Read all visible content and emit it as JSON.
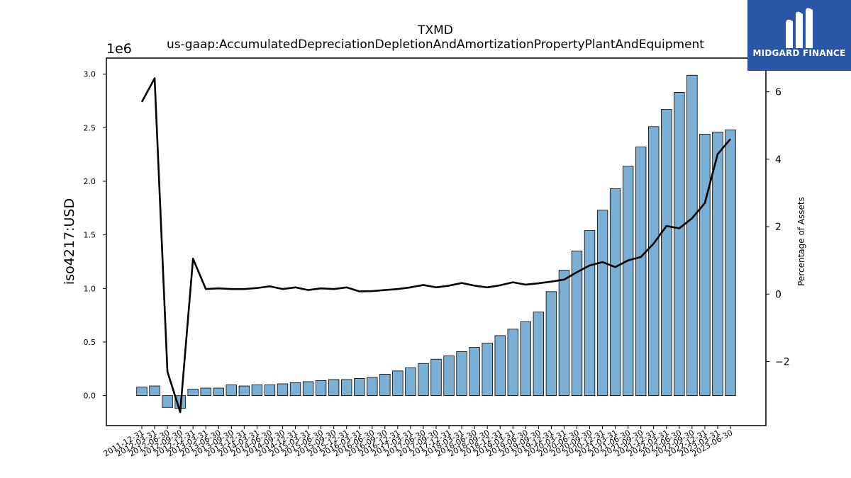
{
  "logo": {
    "text": "MIDGARD FINANCE",
    "icon": "midgard-m-logo-icon",
    "color": "#2a56a8"
  },
  "chart_data": {
    "type": "bar+line",
    "title": "TXMD",
    "subtitle": "us-gaap:AccumulatedDepreciationDepletionAndAmortizationPropertyPlantAndEquipment",
    "ylabel": "iso4217:USD",
    "y2label": "Percentage of Assets",
    "y_offset_label": "1e6",
    "ylim": [
      -0.28,
      3.15
    ],
    "y2lim": [
      -3.9,
      7.0
    ],
    "yticks": [
      "0.0",
      "0.5",
      "1.0",
      "1.5",
      "2.0",
      "2.5",
      "3.0"
    ],
    "y2ticks": [
      "−2",
      "0",
      "2",
      "4",
      "6"
    ],
    "bar_color": "#7bafd4",
    "line_color": "#000000",
    "categories": [
      "2011-12-31",
      "2012-03-31",
      "2012-06-30",
      "2012-09-30",
      "2012-12-31",
      "2013-03-31",
      "2013-06-30",
      "2013-09-30",
      "2013-12-31",
      "2014-03-31",
      "2014-06-30",
      "2014-09-30",
      "2014-12-31",
      "2015-03-31",
      "2015-06-30",
      "2015-09-30",
      "2015-12-31",
      "2016-03-31",
      "2016-06-30",
      "2016-09-30",
      "2016-12-31",
      "2017-03-31",
      "2017-06-30",
      "2017-09-30",
      "2017-12-31",
      "2018-03-31",
      "2018-06-30",
      "2018-09-30",
      "2018-12-31",
      "2019-03-31",
      "2019-06-30",
      "2019-09-30",
      "2019-12-31",
      "2020-03-31",
      "2020-06-30",
      "2020-09-30",
      "2020-12-31",
      "2021-03-31",
      "2021-06-30",
      "2021-09-30",
      "2021-12-31",
      "2022-03-31",
      "2022-06-30",
      "2022-09-30",
      "2022-12-31",
      "2023-03-31",
      "2023-06-30"
    ],
    "series": [
      {
        "type": "bar",
        "axis": "left",
        "values": [
          0.08,
          0.09,
          -0.11,
          -0.12,
          0.06,
          0.07,
          0.07,
          0.1,
          0.09,
          0.1,
          0.1,
          0.11,
          0.12,
          0.13,
          0.14,
          0.15,
          0.15,
          0.16,
          0.17,
          0.2,
          0.23,
          0.26,
          0.3,
          0.34,
          0.37,
          0.41,
          0.45,
          0.49,
          0.56,
          0.62,
          0.69,
          0.78,
          0.97,
          1.17,
          1.35,
          1.54,
          1.73,
          1.93,
          2.14,
          2.32,
          2.51,
          2.67,
          2.83,
          2.99,
          2.44,
          2.46,
          2.48
        ]
      },
      {
        "type": "line",
        "axis": "right",
        "values": [
          5.7,
          6.4,
          -2.3,
          -3.5,
          1.05,
          0.15,
          0.17,
          0.15,
          0.15,
          0.18,
          0.23,
          0.15,
          0.2,
          0.12,
          0.17,
          0.15,
          0.2,
          0.08,
          0.09,
          0.12,
          0.15,
          0.2,
          0.27,
          0.2,
          0.25,
          0.33,
          0.25,
          0.2,
          0.26,
          0.35,
          0.28,
          0.32,
          0.37,
          0.43,
          0.65,
          0.85,
          0.95,
          0.8,
          1.0,
          1.1,
          1.5,
          2.02,
          1.95,
          2.25,
          2.7,
          4.15,
          4.6
        ]
      }
    ]
  }
}
